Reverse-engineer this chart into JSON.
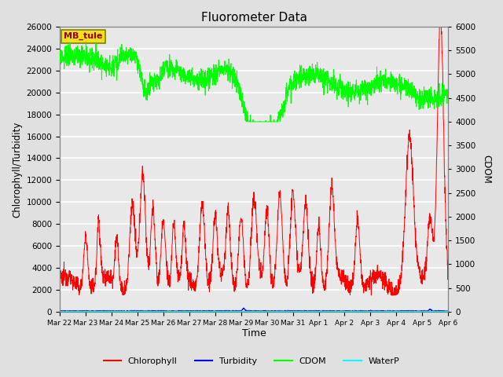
{
  "title": "Fluorometer Data",
  "xlabel": "Time",
  "ylabel_left": "Chlorophyll/Turbidity",
  "ylabel_right": "CDOM",
  "station_label": "MB_tule",
  "ylim_left": [
    0,
    26000
  ],
  "ylim_right": [
    0,
    6000
  ],
  "yticks_left": [
    0,
    2000,
    4000,
    6000,
    8000,
    10000,
    12000,
    14000,
    16000,
    18000,
    20000,
    22000,
    24000,
    26000
  ],
  "yticks_right": [
    0,
    500,
    1000,
    1500,
    2000,
    2500,
    3000,
    3500,
    4000,
    4500,
    5000,
    5500,
    6000
  ],
  "fig_bg_color": "#e0e0e0",
  "plot_bg_color": "#e8e8e8",
  "colors": {
    "chlorophyll": "red",
    "turbidity": "blue",
    "cdom": "#00ff00",
    "waterp": "cyan"
  },
  "legend_labels": [
    "Chlorophyll",
    "Turbidity",
    "CDOM",
    "WaterP"
  ],
  "tick_labels": [
    "Mar 22",
    "Mar 23",
    "Mar 24",
    "Mar 25",
    "Mar 26",
    "Mar 27",
    "Mar 28",
    "Mar 29",
    "Mar 30",
    "Mar 31",
    "Apr 1",
    "Apr 2",
    "Apr 3",
    "Apr 4",
    "Apr 5",
    "Apr 6"
  ]
}
